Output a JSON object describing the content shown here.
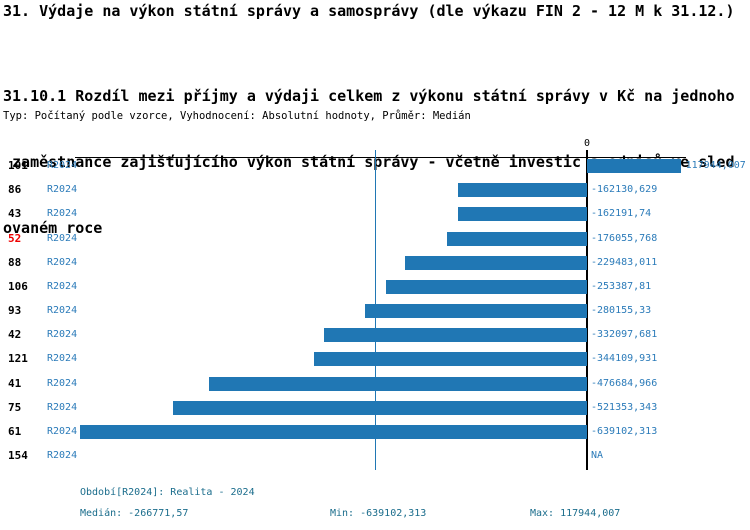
{
  "header": {
    "title": "31. Výdaje na výkon státní správy a samosprávy (dle výkazu FIN 2 - 12 M k 31.12.)",
    "subtitle_lines": [
      "31.10.1 Rozdíl mezi příjmy a výdaji celkem z výkonu státní správy v Kč na jednoho",
      " zaměstnance zajišťujícího výkon státní správy - včetně investic a odpisů ve sled",
      "ovaném roce"
    ],
    "meta": "Typ: Počítaný podle vzorce, Vyhodnocení: Absolutní hodnoty, Průměr: Medián"
  },
  "chart_data": {
    "type": "bar",
    "orientation": "horizontal",
    "title": "31.10.1 Rozdíl mezi příjmy a výdaji celkem z výkonu státní správy v Kč na jednoho zaměstnance zajišťujícího výkon státní správy - včetně investic a odpisů ve sledovaném roce",
    "axis_zero_label": "0",
    "period_label": "R2024",
    "categories": [
      "101",
      "86",
      "43",
      "52",
      "88",
      "106",
      "93",
      "42",
      "121",
      "41",
      "75",
      "61",
      "154"
    ],
    "highlighted_category": "52",
    "values": [
      117944.007,
      -162130.629,
      -162191.74,
      -176055.768,
      -229483.011,
      -253387.81,
      -280155.33,
      -332097.681,
      -344109.931,
      -476684.966,
      -521353.343,
      -639102.313,
      null
    ],
    "value_labels": [
      "117944,007",
      "-162130,629",
      "-162191,74",
      "-176055,768",
      "-229483,011",
      "-253387,81",
      "-280155,33",
      "-332097,681",
      "-344109,931",
      "-476684,966",
      "-521353,343",
      "-639102,313",
      "NA"
    ],
    "median": -266771.57,
    "xlim": [
      -645000,
      125000
    ],
    "grid": false,
    "legend": false
  },
  "footer": {
    "period": "Období[R2024]: Realita - 2024",
    "median": "Medián: -266771,57",
    "min": "Min: -639102,313",
    "max": "Max: 117944,007"
  },
  "colors": {
    "bar": "#2077b4",
    "series_text": "#2b7bb9",
    "footer_text": "#1b6d8c",
    "highlight": "#ee0000",
    "axis": "#000000"
  }
}
